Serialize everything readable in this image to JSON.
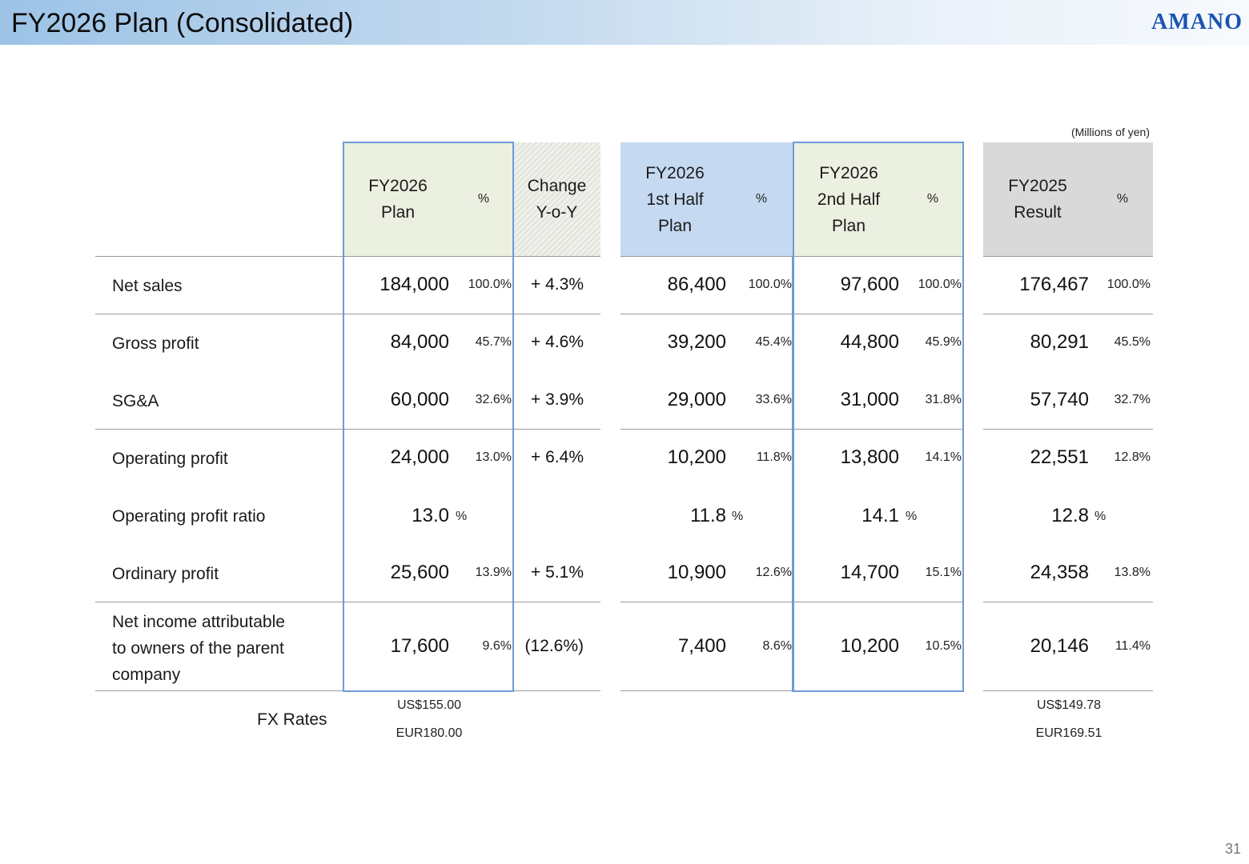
{
  "header": {
    "title": "FY2026 Plan (Consolidated)",
    "logo": "AMANO"
  },
  "units": "(Millions of yen)",
  "page_number": "31",
  "columns": {
    "plan": "FY2026\nPlan",
    "change": "Change\nY-o-Y",
    "h1": "FY2026\n1st Half\nPlan",
    "h2": "FY2026\n2nd Half\nPlan",
    "prev": "FY2025\nResult",
    "pct": "%"
  },
  "rows": [
    {
      "label": "Net sales",
      "plan": "184,000",
      "plan_pct": "100.0%",
      "change": "+ 4.3%",
      "h1": "86,400",
      "h1_pct": "100.0%",
      "h2": "97,600",
      "h2_pct": "100.0%",
      "prev": "176,467",
      "prev_pct": "100.0%"
    },
    {
      "label": "Gross profit",
      "plan": "84,000",
      "plan_pct": "45.7%",
      "change": "+ 4.6%",
      "h1": "39,200",
      "h1_pct": "45.4%",
      "h2": "44,800",
      "h2_pct": "45.9%",
      "prev": "80,291",
      "prev_pct": "45.5%"
    },
    {
      "label": "SG&A",
      "plan": "60,000",
      "plan_pct": "32.6%",
      "change": "+ 3.9%",
      "h1": "29,000",
      "h1_pct": "33.6%",
      "h2": "31,000",
      "h2_pct": "31.8%",
      "prev": "57,740",
      "prev_pct": "32.7%"
    },
    {
      "label": "Operating profit",
      "plan": "24,000",
      "plan_pct": "13.0%",
      "change": "+ 6.4%",
      "h1": "10,200",
      "h1_pct": "11.8%",
      "h2": "13,800",
      "h2_pct": "14.1%",
      "prev": "22,551",
      "prev_pct": "12.8%"
    },
    {
      "label": "Operating profit ratio",
      "plan": "13.0",
      "plan_unit": "%",
      "h1": "11.8",
      "h1_unit": "%",
      "h2": "14.1",
      "h2_unit": "%",
      "prev": "12.8",
      "prev_unit": "%"
    },
    {
      "label": "Ordinary profit",
      "plan": "25,600",
      "plan_pct": "13.9%",
      "change": "+ 5.1%",
      "h1": "10,900",
      "h1_pct": "12.6%",
      "h2": "14,700",
      "h2_pct": "15.1%",
      "prev": "24,358",
      "prev_pct": "13.8%"
    },
    {
      "label": "Net income attributable\nto owners of the parent\ncompany",
      "plan": "17,600",
      "plan_pct": "9.6%",
      "change": "(12.6%)",
      "h1": "7,400",
      "h1_pct": "8.6%",
      "h2": "10,200",
      "h2_pct": "10.5%",
      "prev": "20,146",
      "prev_pct": "11.4%"
    }
  ],
  "fx": {
    "label": "FX Rates",
    "plan_usd": "US$155.00",
    "plan_eur": "EUR180.00",
    "prev_usd": "US$149.78",
    "prev_eur": "EUR169.51"
  }
}
